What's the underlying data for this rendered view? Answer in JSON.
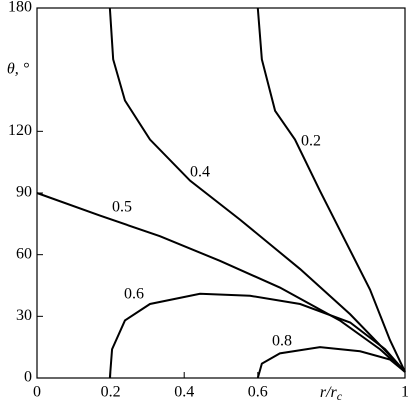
{
  "chart_data": {
    "type": "line",
    "y_label": "θ, °",
    "x_label": "r/r",
    "x_label_sub": "c",
    "xlim": [
      0,
      1
    ],
    "xticks": [
      0,
      0.2,
      0.4,
      0.6,
      1
    ],
    "ylim": [
      0,
      180
    ],
    "yticks": [
      0,
      30,
      60,
      90,
      120,
      180
    ],
    "series": [
      {
        "name": "0.2",
        "color": "#000000",
        "x": [
          0.6,
          0.611,
          0.647,
          0.701,
          0.769,
          0.837,
          0.905,
          0.959,
          1
        ],
        "values": [
          180,
          155,
          130,
          116,
          91,
          67,
          43,
          18.5,
          3
        ]
      },
      {
        "name": "0.4",
        "color": "#000000",
        "x": [
          0.198,
          0.207,
          0.239,
          0.307,
          0.416,
          0.552,
          0.715,
          0.851,
          0.959,
          1
        ],
        "values": [
          180,
          155,
          135,
          116,
          96,
          77,
          53,
          31,
          11,
          3
        ]
      },
      {
        "name": "0.5",
        "color": "#000000",
        "x": [
          0,
          0.171,
          0.334,
          0.497,
          0.66,
          0.823,
          0.932,
          1
        ],
        "values": [
          90,
          79,
          69,
          57,
          44,
          28,
          14,
          3
        ]
      },
      {
        "name": "0.6",
        "color": "#000000",
        "x": [
          0.198,
          0.204,
          0.239,
          0.307,
          0.443,
          0.579,
          0.715,
          0.851,
          0.946,
          1
        ],
        "values": [
          0,
          14,
          28,
          36,
          41,
          40,
          36,
          27,
          14,
          3
        ]
      },
      {
        "name": "0.8",
        "color": "#000000",
        "x": [
          0.6,
          0.611,
          0.66,
          0.769,
          0.878,
          0.959,
          1
        ],
        "values": [
          0,
          7,
          12,
          15,
          13,
          9,
          3
        ]
      }
    ]
  }
}
